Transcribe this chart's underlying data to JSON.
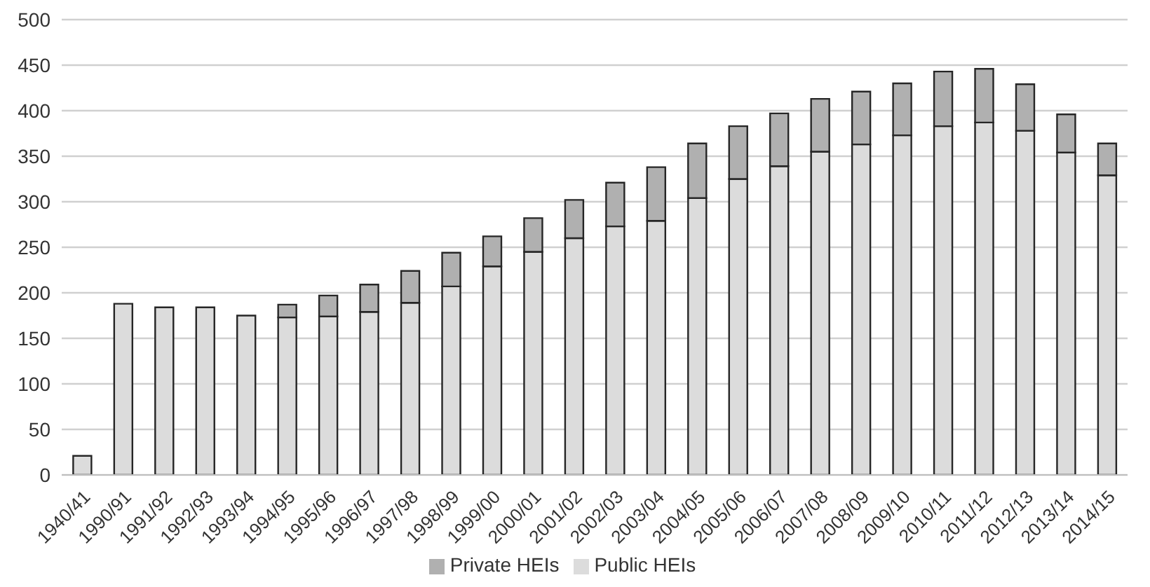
{
  "chart_data": {
    "type": "bar",
    "stacked": true,
    "categories": [
      "1940/41",
      "1990/91",
      "1991/92",
      "1992/93",
      "1993/94",
      "1994/95",
      "1995/96",
      "1996/97",
      "1997/98",
      "1998/99",
      "1999/00",
      "2000/01",
      "2001/02",
      "2002/03",
      "2003/04",
      "2004/05",
      "2005/06",
      "2006/07",
      "2007/08",
      "2008/09",
      "2009/10",
      "2010/11",
      "2011/12",
      "2012/13",
      "2013/14",
      "2014/15"
    ],
    "series": [
      {
        "name": "Public HEIs",
        "color": "#dcdcdc",
        "values": [
          21,
          188,
          184,
          184,
          175,
          173,
          174,
          179,
          189,
          207,
          229,
          245,
          260,
          273,
          279,
          304,
          325,
          339,
          355,
          363,
          373,
          383,
          387,
          378,
          354,
          329
        ]
      },
      {
        "name": "Private HEIs",
        "color": "#b0b0b0",
        "values": [
          null,
          null,
          null,
          null,
          null,
          14,
          23,
          30,
          35,
          37,
          33,
          37,
          42,
          48,
          59,
          60,
          58,
          58,
          58,
          58,
          57,
          60,
          59,
          51,
          42,
          35
        ]
      }
    ],
    "ylim": [
      0,
      500
    ],
    "yticks": [
      0,
      50,
      100,
      150,
      200,
      250,
      300,
      350,
      400,
      450,
      500
    ],
    "grid": "y",
    "legend": "bottom"
  }
}
